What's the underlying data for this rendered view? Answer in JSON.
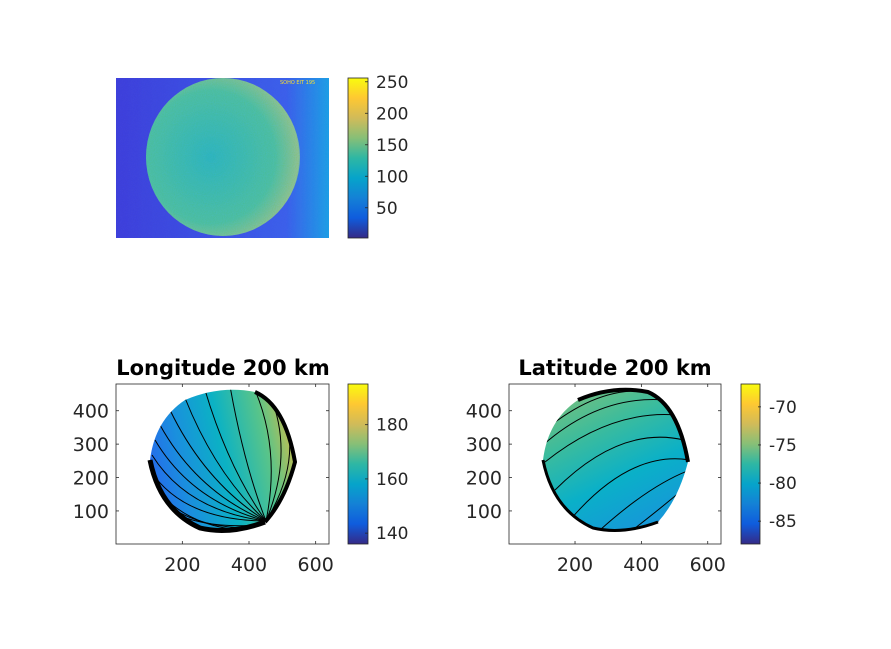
{
  "chart_data": [
    {
      "type": "heatmap",
      "title": "",
      "description_kind": "image",
      "xlim": [
        1,
        640
      ],
      "ylim": [
        1,
        480
      ],
      "axis_ticks_visible": false,
      "overlay_text": "SOHO EIT 195",
      "colorbar": {
        "range": [
          2,
          256
        ],
        "ticks": [
          50,
          100,
          150,
          200,
          250
        ]
      }
    },
    {
      "type": "heatmap",
      "title": "Longitude 200 km",
      "xlim": [
        1,
        640
      ],
      "ylim": [
        1,
        480
      ],
      "xticks": [
        200,
        400,
        600
      ],
      "yticks": [
        100,
        200,
        300,
        400
      ],
      "contour_lines": true,
      "colorbar": {
        "range": [
          136,
          195
        ],
        "ticks": [
          140,
          160,
          180
        ]
      }
    },
    {
      "type": "heatmap",
      "title": "Latitude 200 km",
      "xlim": [
        1,
        640
      ],
      "ylim": [
        1,
        480
      ],
      "xticks": [
        200,
        400,
        600
      ],
      "yticks": [
        100,
        200,
        300,
        400
      ],
      "contour_lines": true,
      "colorbar": {
        "range": [
          -88,
          -67
        ],
        "ticks": [
          -85,
          -80,
          -75,
          -70
        ]
      }
    }
  ],
  "colors": [
    "#352a87",
    "#0f5cdd",
    "#1481d6",
    "#06a4ca",
    "#2eb7a4",
    "#87bf77",
    "#d1bb59",
    "#fec832",
    "#f9fb0e"
  ]
}
